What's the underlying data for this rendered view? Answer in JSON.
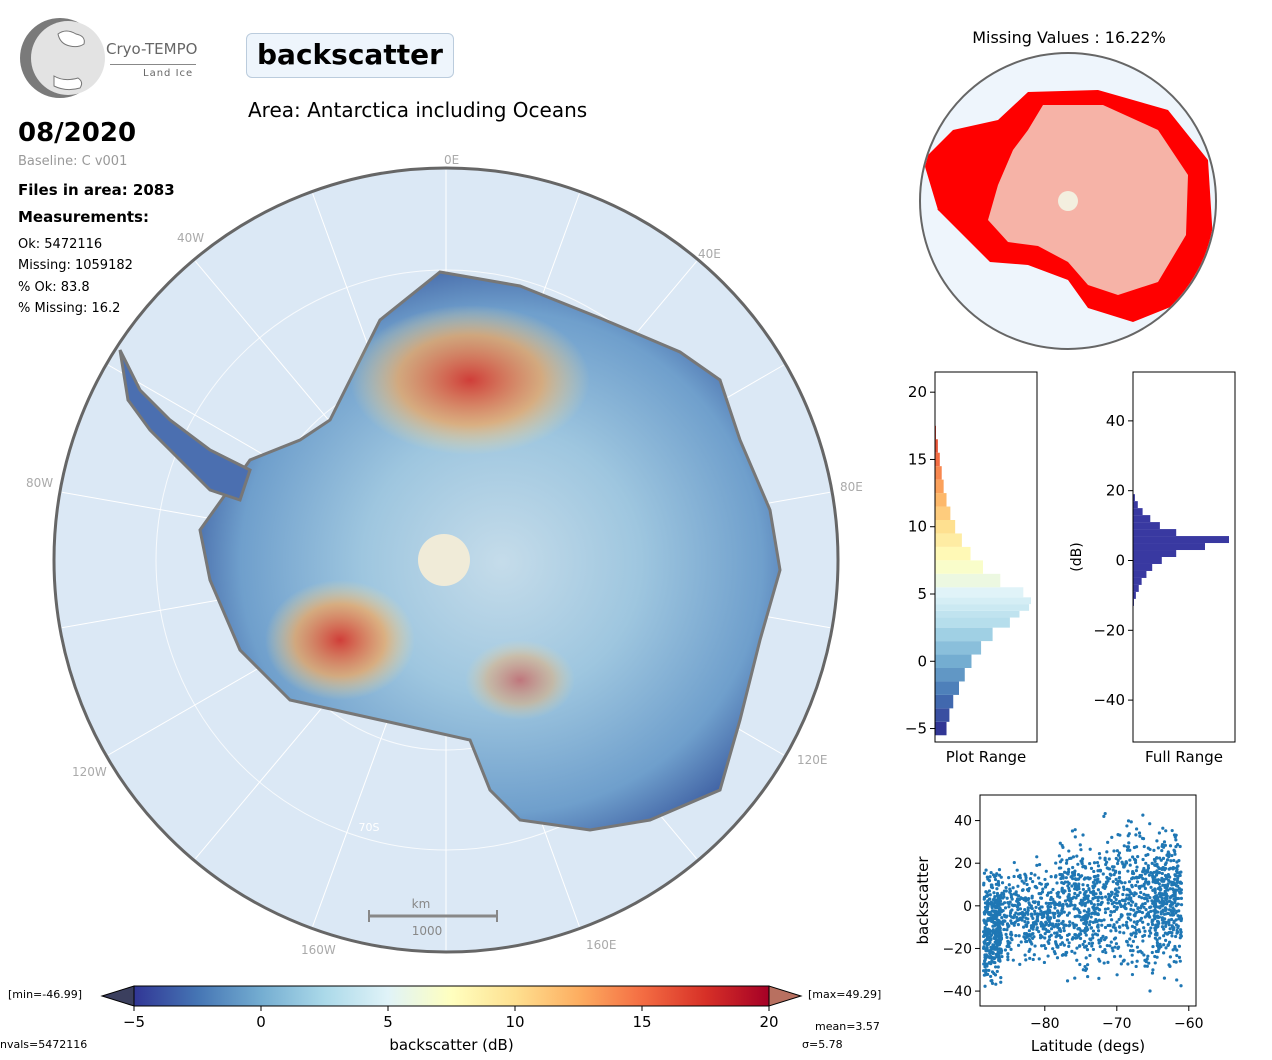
{
  "logo": {
    "title": "Cryo-TEMPO",
    "subtitle": "Land Ice"
  },
  "header": {
    "variable": "backscatter",
    "area": "Area: Antarctica including Oceans",
    "date": "08/2020",
    "baseline": "Baseline: C v001"
  },
  "stats": {
    "files": "Files in area: 2083",
    "measurements_label": "Measurements:",
    "ok": "Ok: 5472116",
    "missing": "Missing: 1059182",
    "pct_ok": "% Ok: 83.8",
    "pct_missing": "% Missing: 16.2"
  },
  "map": {
    "lon_labels": [
      "0E",
      "40E",
      "80E",
      "120E",
      "160E",
      "160W",
      "120W",
      "80W",
      "40W"
    ],
    "lat_label": "70S",
    "scalebar_unit": "km",
    "scalebar_value": "1000"
  },
  "missing_map": {
    "title": "Missing Values : 16.22%"
  },
  "colorbar": {
    "min_label": "[min=-46.99]",
    "max_label": "[max=49.29]",
    "label": "backscatter (dB)",
    "ticks": [
      "-5",
      "0",
      "5",
      "10",
      "15",
      "20"
    ],
    "range": [
      -5,
      20
    ],
    "colors": [
      "#313695",
      "#4575b4",
      "#74add1",
      "#abd9e9",
      "#e0f3f8",
      "#ffffbf",
      "#fee090",
      "#fdae61",
      "#f46d43",
      "#d73027",
      "#a50026"
    ],
    "under_color": "#3b3f5e",
    "over_color": "#b87060"
  },
  "footer": {
    "nvals": "nvals=5472116",
    "mean": "mean=3.57",
    "sigma": "σ=5.78"
  },
  "chart_data": [
    {
      "type": "bar",
      "orientation": "horizontal",
      "title": "",
      "xlabel": "Plot Range",
      "ylabel": "",
      "ylim": [
        -6,
        21.5
      ],
      "yticks": [
        -5,
        0,
        5,
        10,
        15,
        20
      ],
      "bin_centers": [
        -5,
        -4,
        -3,
        -2,
        -1,
        0,
        1,
        2,
        3,
        3.5,
        4,
        4.5,
        5,
        6,
        7,
        8,
        9,
        10,
        11,
        12,
        13,
        14,
        15,
        16,
        17
      ],
      "values": [
        0.12,
        0.15,
        0.19,
        0.25,
        0.31,
        0.38,
        0.48,
        0.6,
        0.78,
        0.88,
        0.98,
        1.0,
        0.92,
        0.68,
        0.5,
        0.37,
        0.28,
        0.21,
        0.16,
        0.12,
        0.09,
        0.07,
        0.05,
        0.03,
        0.01
      ]
    },
    {
      "type": "bar",
      "orientation": "horizontal",
      "title": "",
      "xlabel": "Full Range",
      "ylabel": "(dB)",
      "ylim": [
        -52,
        54
      ],
      "yticks": [
        -40,
        -20,
        0,
        20,
        40
      ],
      "color": "#3939a1",
      "bin_centers": [
        -12,
        -10,
        -8,
        -6,
        -4,
        -2,
        0,
        2,
        4,
        6,
        8,
        10,
        12,
        14,
        16,
        18
      ],
      "values": [
        0.01,
        0.03,
        0.06,
        0.09,
        0.14,
        0.2,
        0.3,
        0.45,
        0.75,
        1.0,
        0.45,
        0.28,
        0.18,
        0.1,
        0.05,
        0.02
      ]
    },
    {
      "type": "scatter",
      "title": "",
      "xlabel": "Latitude (degs)",
      "ylabel": "backscatter",
      "xlim": [
        -89,
        -59
      ],
      "ylim": [
        -47,
        52
      ],
      "xticks": [
        -80,
        -70,
        -60
      ],
      "yticks": [
        -40,
        -20,
        0,
        20,
        40
      ],
      "color": "#1f77b4",
      "bands": [
        {
          "x": [
            -88.5,
            -86
          ],
          "y": [
            -45,
            18
          ]
        },
        {
          "x": [
            -86,
            -78
          ],
          "y": [
            -38,
            23
          ]
        },
        {
          "x": [
            -78,
            -72
          ],
          "y": [
            -44,
            38
          ]
        },
        {
          "x": [
            -72,
            -65
          ],
          "y": [
            -47,
            49
          ]
        },
        {
          "x": [
            -65,
            -61
          ],
          "y": [
            -45,
            45
          ]
        }
      ]
    }
  ]
}
